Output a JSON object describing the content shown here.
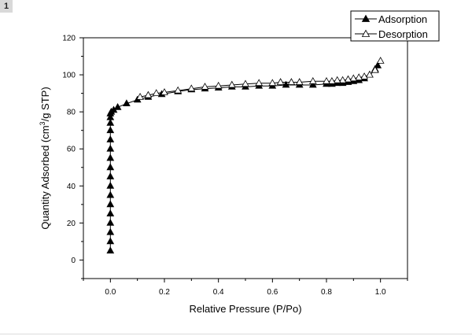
{
  "badge": "1",
  "chart_data": {
    "type": "scatter",
    "xlabel": "Relative Pressure (P/Po)",
    "ylabel_parts": [
      "Quantity Adsorbed (cm",
      "3",
      "/g STP)"
    ],
    "xlim": [
      -0.1,
      1.1
    ],
    "ylim": [
      -10,
      120
    ],
    "x_ticks": [
      0.0,
      0.2,
      0.4,
      0.6,
      0.8,
      1.0
    ],
    "x_tick_labels": [
      "0.0",
      "0.2",
      "0.4",
      "0.6",
      "0.8",
      "1.0"
    ],
    "y_ticks": [
      0,
      20,
      40,
      60,
      80,
      100,
      120
    ],
    "y_tick_labels": [
      "0",
      "20",
      "40",
      "60",
      "80",
      "100",
      "120"
    ],
    "grid": false,
    "legend_position": "top-right",
    "series": [
      {
        "name": "Adsorption",
        "marker": "filled-triangle",
        "x": [
          0.0,
          0.0,
          0.0,
          0.0,
          0.0,
          0.0,
          0.0,
          0.0,
          0.0,
          0.0,
          0.0,
          0.0,
          0.0,
          0.0,
          0.0,
          0.0,
          0.0,
          0.003,
          0.012,
          0.027,
          0.06,
          0.1,
          0.14,
          0.19,
          0.25,
          0.3,
          0.35,
          0.4,
          0.45,
          0.5,
          0.55,
          0.6,
          0.65,
          0.7,
          0.75,
          0.8,
          0.82,
          0.84,
          0.86,
          0.88,
          0.9,
          0.92,
          0.94,
          0.96,
          0.98,
          0.99
        ],
        "y": [
          5,
          10,
          15,
          20,
          25,
          30,
          35,
          40,
          45,
          50,
          55,
          60,
          65,
          70,
          74,
          77,
          79,
          80,
          81,
          82.5,
          84.5,
          86.5,
          88,
          89.5,
          91,
          92,
          92.5,
          93,
          93.5,
          93.5,
          94,
          94,
          94.5,
          94.5,
          94.5,
          95,
          95,
          95.5,
          95.5,
          96,
          96.5,
          97,
          98,
          100,
          103,
          105
        ]
      },
      {
        "name": "Desorption",
        "marker": "open-triangle",
        "x": [
          1.0,
          0.98,
          0.96,
          0.94,
          0.92,
          0.9,
          0.88,
          0.86,
          0.84,
          0.82,
          0.8,
          0.75,
          0.7,
          0.67,
          0.63,
          0.6,
          0.55,
          0.5,
          0.45,
          0.4,
          0.35,
          0.3,
          0.25,
          0.2,
          0.17,
          0.14,
          0.11
        ],
        "y": [
          107.5,
          102.5,
          100,
          99,
          98.5,
          98,
          97.5,
          97,
          97,
          96.5,
          96.5,
          96.5,
          96,
          96,
          96,
          95.5,
          95.5,
          95,
          94.5,
          94,
          93.5,
          92.5,
          91.5,
          90.5,
          90,
          89,
          88
        ]
      }
    ]
  }
}
